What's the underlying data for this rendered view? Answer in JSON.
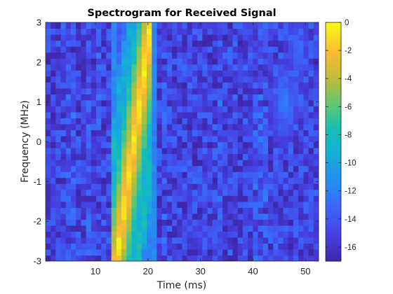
{
  "chart_data": {
    "type": "heatmap",
    "title": "Spectrogram for Received Signal",
    "xlabel": "Time (ms)",
    "ylabel": "Frequency (MHz)",
    "xlim": [
      0.5,
      52.5
    ],
    "ylim": [
      -3,
      3
    ],
    "x_ticks": [
      "10",
      "20",
      "30",
      "40",
      "50"
    ],
    "x_tick_values": [
      10,
      20,
      30,
      40,
      50
    ],
    "y_ticks": [
      "3",
      "2",
      "1",
      "0",
      "-1",
      "-2",
      "-3"
    ],
    "y_tick_values": [
      3,
      2,
      1,
      0,
      -1,
      -2,
      -3
    ],
    "colorbar": {
      "range": [
        -17,
        0
      ],
      "tick_labels": [
        "0",
        "-2",
        "-4",
        "-6",
        "-8",
        "-10",
        "-12",
        "-14",
        "-16"
      ],
      "tick_values": [
        0,
        -2,
        -4,
        -6,
        -8,
        -10,
        -12,
        -14,
        -16
      ],
      "colormap": "parula"
    },
    "time_bins": 54,
    "freq_bins": 40,
    "noise_floor_db": -16.5,
    "features": [
      {
        "kind": "chirp",
        "t_start_ms": 14.0,
        "t_end_ms": 20.6,
        "f_start_mhz": -3.0,
        "f_end_mhz": 3.0,
        "peak_db": 0
      },
      {
        "kind": "band-edge",
        "t_ms": 13.7,
        "level_db": -11
      },
      {
        "kind": "band-edge",
        "t_ms": 20.7,
        "level_db": -11
      },
      {
        "kind": "blob",
        "t_ms": 46.0,
        "f_mhz": 1.0,
        "level_db": -11
      },
      {
        "kind": "blob",
        "t_ms": 48.5,
        "f_mhz": 2.3,
        "level_db": -12
      }
    ],
    "grid": false
  }
}
